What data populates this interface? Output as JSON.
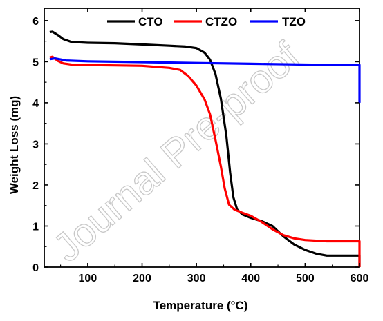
{
  "chart_data": {
    "type": "line",
    "xlabel": "Temperature (°C)",
    "ylabel": "Weight Loss (mg)",
    "xlim": [
      20,
      600
    ],
    "ylim": [
      0,
      6.3
    ],
    "xticks": [
      100,
      200,
      300,
      400,
      500,
      600
    ],
    "yticks": [
      0,
      1,
      2,
      3,
      4,
      5,
      6
    ],
    "legend_position": "top",
    "grid": false,
    "series": [
      {
        "name": "CTO",
        "color": "#000000",
        "points": [
          [
            30,
            5.72
          ],
          [
            35,
            5.73
          ],
          [
            45,
            5.65
          ],
          [
            55,
            5.55
          ],
          [
            70,
            5.48
          ],
          [
            100,
            5.46
          ],
          [
            150,
            5.45
          ],
          [
            200,
            5.42
          ],
          [
            250,
            5.39
          ],
          [
            280,
            5.37
          ],
          [
            300,
            5.33
          ],
          [
            315,
            5.22
          ],
          [
            325,
            5.05
          ],
          [
            335,
            4.7
          ],
          [
            345,
            4.1
          ],
          [
            355,
            3.2
          ],
          [
            362,
            2.3
          ],
          [
            368,
            1.7
          ],
          [
            375,
            1.4
          ],
          [
            385,
            1.28
          ],
          [
            400,
            1.2
          ],
          [
            420,
            1.12
          ],
          [
            440,
            1.0
          ],
          [
            460,
            0.75
          ],
          [
            480,
            0.55
          ],
          [
            500,
            0.42
          ],
          [
            520,
            0.33
          ],
          [
            540,
            0.28
          ],
          [
            560,
            0.28
          ],
          [
            600,
            0.28
          ],
          [
            600,
            0.0
          ]
        ]
      },
      {
        "name": "CTZO",
        "color": "#ff0000",
        "points": [
          [
            30,
            5.1
          ],
          [
            35,
            5.12
          ],
          [
            45,
            5.02
          ],
          [
            55,
            4.96
          ],
          [
            70,
            4.93
          ],
          [
            100,
            4.92
          ],
          [
            150,
            4.91
          ],
          [
            200,
            4.9
          ],
          [
            250,
            4.85
          ],
          [
            270,
            4.8
          ],
          [
            285,
            4.65
          ],
          [
            300,
            4.42
          ],
          [
            315,
            4.08
          ],
          [
            325,
            3.72
          ],
          [
            335,
            3.1
          ],
          [
            345,
            2.45
          ],
          [
            352,
            1.92
          ],
          [
            360,
            1.52
          ],
          [
            370,
            1.4
          ],
          [
            385,
            1.32
          ],
          [
            400,
            1.25
          ],
          [
            420,
            1.1
          ],
          [
            440,
            0.92
          ],
          [
            460,
            0.78
          ],
          [
            480,
            0.7
          ],
          [
            500,
            0.66
          ],
          [
            540,
            0.63
          ],
          [
            600,
            0.63
          ],
          [
            600,
            0.0
          ]
        ]
      },
      {
        "name": "TZO",
        "color": "#0000ff",
        "points": [
          [
            30,
            5.06
          ],
          [
            40,
            5.08
          ],
          [
            60,
            5.03
          ],
          [
            100,
            5.01
          ],
          [
            200,
            4.99
          ],
          [
            300,
            4.97
          ],
          [
            400,
            4.95
          ],
          [
            500,
            4.93
          ],
          [
            560,
            4.92
          ],
          [
            600,
            4.92
          ],
          [
            600,
            4.0
          ]
        ]
      }
    ]
  },
  "watermark": "Journal Pre-proof"
}
